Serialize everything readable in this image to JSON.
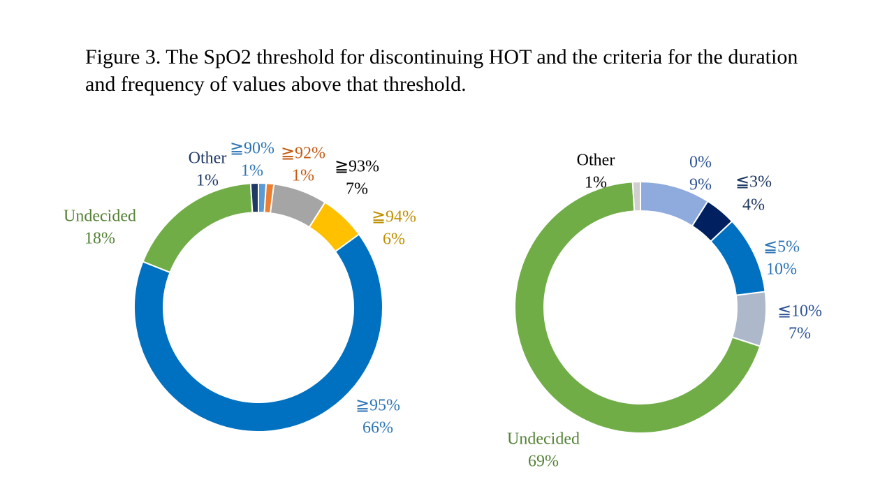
{
  "title": "Figure 3. The SpO2 threshold for discontinuing HOT and the criteria for the duration and frequency of values above that threshold.",
  "chart_data": [
    {
      "type": "pie",
      "variant": "doughnut",
      "start": "top",
      "direction": "clockwise",
      "slices": [
        {
          "label": "≧90%",
          "value": 1,
          "display": "1%",
          "color": "#5b9bd5",
          "label_color": "#2e75b6"
        },
        {
          "label": "≧92%",
          "value": 1,
          "display": "1%",
          "color": "#ed7d31",
          "label_color": "#c55a11"
        },
        {
          "label": "≧93%",
          "value": 7,
          "display": "7%",
          "color": "#a5a5a5",
          "label_color": "#000000"
        },
        {
          "label": "≧94%",
          "value": 6,
          "display": "6%",
          "color": "#ffc000",
          "label_color": "#bf9000"
        },
        {
          "label": "≧95%",
          "value": 66,
          "display": "66%",
          "color": "#0070c0",
          "label_color": "#2e75b6"
        },
        {
          "label": "Undecided",
          "value": 18,
          "display": "18%",
          "color": "#70ad47",
          "label_color": "#548235"
        },
        {
          "label": "Other",
          "value": 1,
          "display": "1%",
          "color": "#1f3864",
          "label_color": "#1f3864"
        }
      ]
    },
    {
      "type": "pie",
      "variant": "doughnut",
      "start": "top",
      "direction": "clockwise",
      "slices": [
        {
          "label": "0%",
          "value": 9,
          "display": "9%",
          "color": "#8faadc",
          "label_color": "#2f5597"
        },
        {
          "label": "≦3%",
          "value": 4,
          "display": "4%",
          "color": "#002060",
          "label_color": "#1f3864"
        },
        {
          "label": "≦5%",
          "value": 10,
          "display": "10%",
          "color": "#0070c0",
          "label_color": "#2e75b6"
        },
        {
          "label": "≦10%",
          "value": 7,
          "display": "7%",
          "color": "#adb9ca",
          "label_color": "#2f5597"
        },
        {
          "label": "Undecided",
          "value": 69,
          "display": "69%",
          "color": "#70ad47",
          "label_color": "#548235"
        },
        {
          "label": "Other",
          "value": 1,
          "display": "1%",
          "color": "#d0cece",
          "label_color": "#000000"
        }
      ]
    }
  ]
}
